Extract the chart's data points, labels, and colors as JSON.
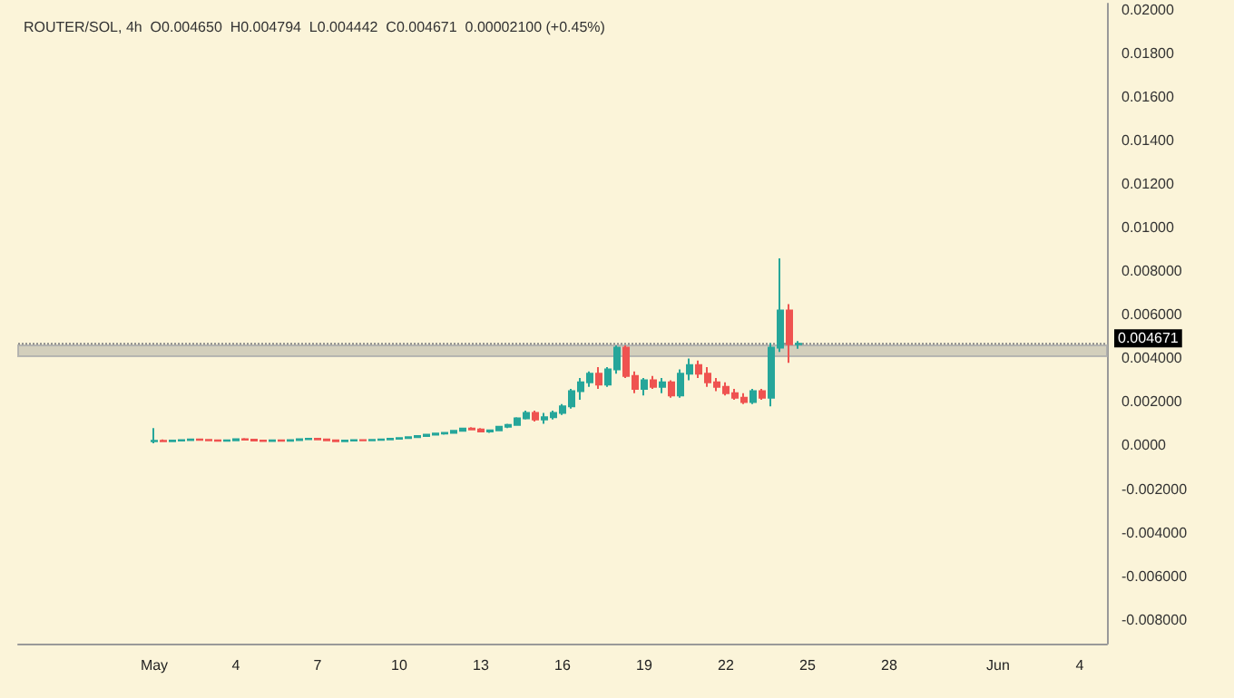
{
  "chart_data": {
    "type": "candlestick",
    "title": "ROUTER/SOL, 4h  O0.004650  H0.004794  L0.004442  C0.004671  0.00002100 (+0.45%)",
    "x": [
      "--05-01T00:00",
      "--05-01T08:00",
      "--05-01T16:00",
      "--05-02T00:00",
      "--05-02T08:00",
      "--05-02T16:00",
      "--05-03T00:00",
      "--05-03T08:00",
      "--05-03T16:00",
      "--05-04T00:00",
      "--05-04T08:00",
      "--05-04T16:00",
      "--05-05T00:00",
      "--05-05T08:00",
      "--05-05T16:00",
      "--05-06T00:00",
      "--05-06T08:00",
      "--05-06T16:00",
      "--05-07T00:00",
      "--05-07T08:00",
      "--05-07T16:00",
      "--05-08T00:00",
      "--05-08T08:00",
      "--05-08T16:00",
      "--05-09T00:00",
      "--05-09T08:00",
      "--05-09T16:00",
      "--05-10T00:00",
      "--05-10T08:00",
      "--05-10T16:00",
      "--05-11T00:00",
      "--05-11T08:00",
      "--05-11T16:00",
      "--05-12T00:00",
      "--05-12T08:00",
      "--05-12T16:00",
      "--05-13T00:00",
      "--05-13T08:00",
      "--05-13T16:00",
      "--05-14T00:00",
      "--05-14T08:00",
      "--05-14T16:00",
      "--05-15T00:00",
      "--05-15T08:00",
      "--05-15T16:00",
      "--05-16T00:00",
      "--05-16T08:00",
      "--05-16T16:00",
      "--05-17T00:00",
      "--05-17T08:00",
      "--05-17T16:00",
      "--05-18T00:00",
      "--05-18T08:00",
      "--05-18T16:00",
      "--05-19T00:00",
      "--05-19T08:00",
      "--05-19T16:00",
      "--05-20T00:00",
      "--05-20T08:00",
      "--05-20T16:00",
      "--05-21T00:00",
      "--05-21T08:00",
      "--05-21T16:00",
      "--05-22T00:00",
      "--05-22T08:00",
      "--05-22T16:00",
      "--05-23T00:00",
      "--05-23T08:00",
      "--05-23T16:00",
      "--05-24T00:00",
      "--05-24T08:00",
      "--05-24T16:00"
    ],
    "ohlc": [
      [
        0.0002,
        0.0008,
        0.0001,
        0.00022
      ],
      [
        0.00022,
        0.00028,
        0.00018,
        0.0002
      ],
      [
        0.0002,
        0.00026,
        0.00018,
        0.00023
      ],
      [
        0.00023,
        0.00027,
        0.0002,
        0.00025
      ],
      [
        0.00025,
        0.0003,
        0.00022,
        0.00028
      ],
      [
        0.00028,
        0.00031,
        0.00024,
        0.00026
      ],
      [
        0.00026,
        0.0003,
        0.00022,
        0.00024
      ],
      [
        0.00024,
        0.00028,
        0.0002,
        0.00022
      ],
      [
        0.00022,
        0.00026,
        0.00018,
        0.00024
      ],
      [
        0.00024,
        0.0003,
        0.00022,
        0.00029
      ],
      [
        0.00029,
        0.00034,
        0.00025,
        0.00027
      ],
      [
        0.00027,
        0.0003,
        0.00022,
        0.00023
      ],
      [
        0.00023,
        0.00027,
        0.00019,
        0.00021
      ],
      [
        0.00021,
        0.00025,
        0.00018,
        0.00024
      ],
      [
        0.00024,
        0.00028,
        0.0002,
        0.00022
      ],
      [
        0.00022,
        0.00026,
        0.00019,
        0.00025
      ],
      [
        0.00025,
        0.0003,
        0.00022,
        0.00029
      ],
      [
        0.00029,
        0.00034,
        0.00025,
        0.00031
      ],
      [
        0.00031,
        0.00035,
        0.00026,
        0.00028
      ],
      [
        0.00028,
        0.00031,
        0.00022,
        0.00024
      ],
      [
        0.00024,
        0.00027,
        0.00018,
        0.0002
      ],
      [
        0.0002,
        0.00026,
        0.00017,
        0.00023
      ],
      [
        0.00023,
        0.00027,
        0.0002,
        0.00025
      ],
      [
        0.00025,
        0.00029,
        0.00022,
        0.00024
      ],
      [
        0.00024,
        0.00028,
        0.00021,
        0.00026
      ],
      [
        0.00026,
        0.0003,
        0.00023,
        0.00028
      ],
      [
        0.00028,
        0.00033,
        0.00025,
        0.00031
      ],
      [
        0.00031,
        0.00036,
        0.00027,
        0.00034
      ],
      [
        0.00034,
        0.0004,
        0.0003,
        0.00038
      ],
      [
        0.00038,
        0.00046,
        0.00034,
        0.00044
      ],
      [
        0.00044,
        0.00052,
        0.0004,
        0.0005
      ],
      [
        0.0005,
        0.00058,
        0.00046,
        0.00055
      ],
      [
        0.00055,
        0.00062,
        0.0005,
        0.00058
      ],
      [
        0.00058,
        0.0007,
        0.00054,
        0.00068
      ],
      [
        0.00068,
        0.0008,
        0.00064,
        0.00078
      ],
      [
        0.00078,
        0.00084,
        0.0007,
        0.00074
      ],
      [
        0.00074,
        0.0008,
        0.0006,
        0.00064
      ],
      [
        0.00064,
        0.00072,
        0.00058,
        0.0007
      ],
      [
        0.0007,
        0.0009,
        0.00066,
        0.00086
      ],
      [
        0.00086,
        0.001,
        0.0008,
        0.00095
      ],
      [
        0.00095,
        0.0013,
        0.0009,
        0.00125
      ],
      [
        0.00125,
        0.0016,
        0.0012,
        0.0015
      ],
      [
        0.0015,
        0.0016,
        0.0011,
        0.0012
      ],
      [
        0.0012,
        0.0015,
        0.001,
        0.0013
      ],
      [
        0.0013,
        0.0016,
        0.0012,
        0.0015
      ],
      [
        0.0015,
        0.0019,
        0.0014,
        0.0018
      ],
      [
        0.0018,
        0.0026,
        0.0017,
        0.0025
      ],
      [
        0.0025,
        0.0031,
        0.0021,
        0.0029
      ],
      [
        0.0029,
        0.0034,
        0.0027,
        0.0033
      ],
      [
        0.0033,
        0.0036,
        0.0026,
        0.0028
      ],
      [
        0.0028,
        0.0036,
        0.0027,
        0.0035
      ],
      [
        0.0035,
        0.0046,
        0.0033,
        0.0045
      ],
      [
        0.0045,
        0.0046,
        0.0031,
        0.0032
      ],
      [
        0.0032,
        0.0034,
        0.0024,
        0.0026
      ],
      [
        0.0026,
        0.0031,
        0.0023,
        0.003
      ],
      [
        0.003,
        0.0032,
        0.0026,
        0.0027
      ],
      [
        0.0027,
        0.0031,
        0.0024,
        0.0029
      ],
      [
        0.0029,
        0.003,
        0.0022,
        0.0023
      ],
      [
        0.0023,
        0.0035,
        0.0022,
        0.0033
      ],
      [
        0.0033,
        0.004,
        0.003,
        0.0037
      ],
      [
        0.0037,
        0.0039,
        0.0031,
        0.0033
      ],
      [
        0.0033,
        0.0036,
        0.0027,
        0.0029
      ],
      [
        0.0029,
        0.0031,
        0.0025,
        0.0027
      ],
      [
        0.0027,
        0.0029,
        0.0023,
        0.0024
      ],
      [
        0.0024,
        0.0026,
        0.0021,
        0.0022
      ],
      [
        0.0022,
        0.0024,
        0.0019,
        0.002
      ],
      [
        0.002,
        0.0026,
        0.0019,
        0.0025
      ],
      [
        0.0025,
        0.0026,
        0.0021,
        0.0022
      ],
      [
        0.0022,
        0.0047,
        0.0018,
        0.0045
      ],
      [
        0.0045,
        0.0086,
        0.0043,
        0.0062
      ],
      [
        0.0062,
        0.0065,
        0.0038,
        0.00465
      ],
      [
        0.00465,
        0.004794,
        0.004442,
        0.004671
      ]
    ],
    "xlim": [
      "--04-26",
      "--06-05"
    ],
    "xticks": [
      {
        "value": "--05-01",
        "label": "May"
      },
      {
        "value": "--05-04",
        "label": "4"
      },
      {
        "value": "--05-07",
        "label": "7"
      },
      {
        "value": "--05-10",
        "label": "10"
      },
      {
        "value": "--05-13",
        "label": "13"
      },
      {
        "value": "--05-16",
        "label": "16"
      },
      {
        "value": "--05-19",
        "label": "19"
      },
      {
        "value": "--05-22",
        "label": "22"
      },
      {
        "value": "--05-25",
        "label": "25"
      },
      {
        "value": "--05-28",
        "label": "28"
      },
      {
        "value": "--06-01",
        "label": "Jun"
      },
      {
        "value": "--06-04",
        "label": "4"
      }
    ],
    "ylim": [
      -0.0091,
      0.0203
    ],
    "yticks": [
      {
        "value": 0.02,
        "label": "0.02000"
      },
      {
        "value": 0.018,
        "label": "0.01800"
      },
      {
        "value": 0.016,
        "label": "0.01600"
      },
      {
        "value": 0.014,
        "label": "0.01400"
      },
      {
        "value": 0.012,
        "label": "0.01200"
      },
      {
        "value": 0.01,
        "label": "0.01000"
      },
      {
        "value": 0.008,
        "label": "0.008000"
      },
      {
        "value": 0.006,
        "label": "0.006000"
      },
      {
        "value": 0.004,
        "label": "0.004000"
      },
      {
        "value": 0.002,
        "label": "0.002000"
      },
      {
        "value": 0,
        "label": "0.0000"
      },
      {
        "value": -0.002,
        "label": "-0.002000"
      },
      {
        "value": -0.004,
        "label": "-0.004000"
      },
      {
        "value": -0.006,
        "label": "-0.006000"
      },
      {
        "value": -0.008,
        "label": "-0.008000"
      }
    ],
    "ref_lines": [
      {
        "axis": "y",
        "value": 0.004671,
        "label": "0.004671",
        "line_style": "dotted"
      }
    ],
    "bands": [
      {
        "axis": "y",
        "from": 0.0041,
        "to": 0.0046,
        "color": "#c9c6b4"
      }
    ]
  }
}
